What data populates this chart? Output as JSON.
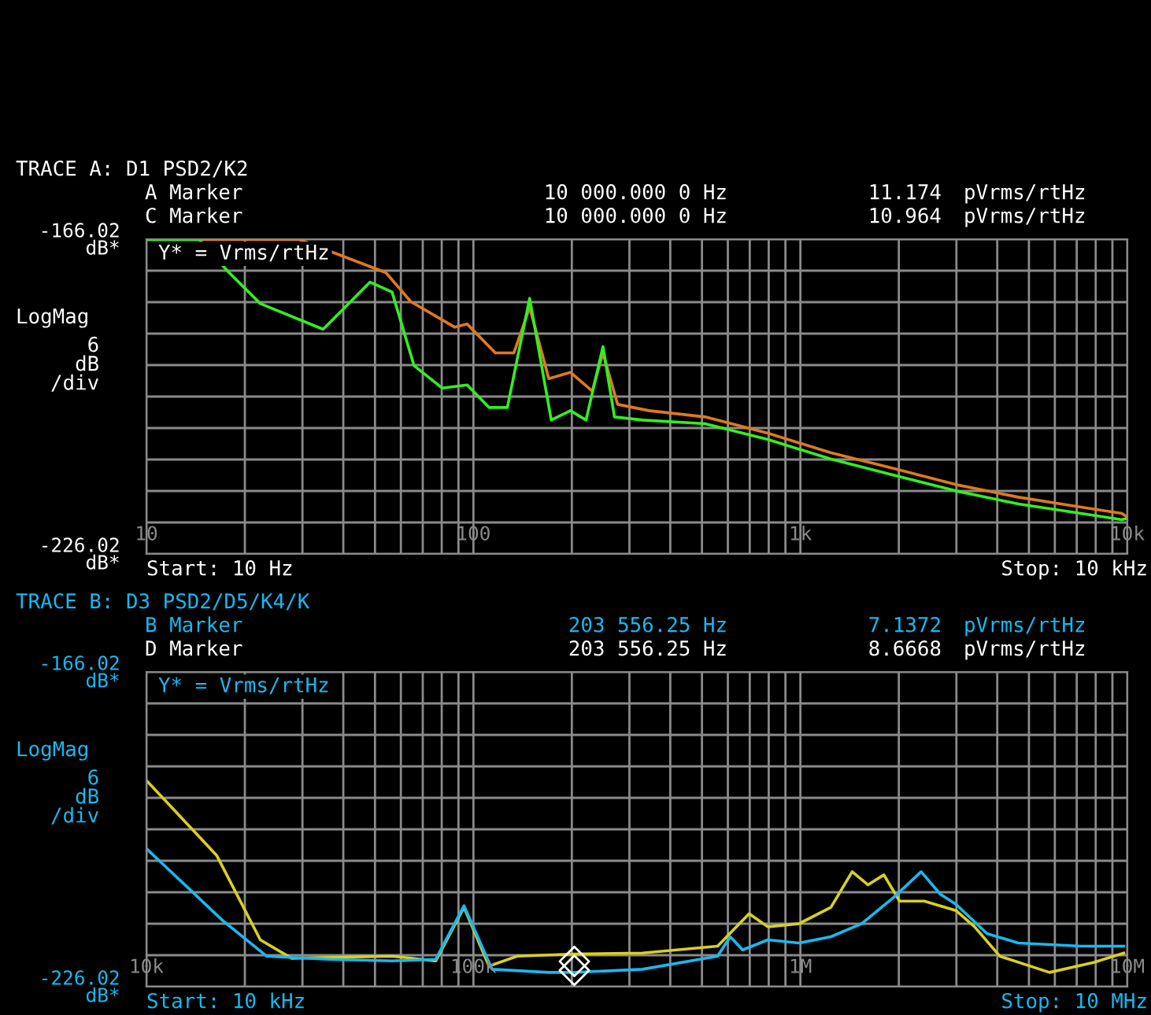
{
  "chart_data": [
    {
      "type": "line",
      "title": "TRACE A: D1 PSD2/K2",
      "ylabel": "6\ndB\n/div",
      "log": "x",
      "grid": true,
      "xlim": [
        10,
        10000
      ],
      "ylim": [
        -226.02,
        -166.02
      ],
      "xticks": [
        10,
        {
          "value": 20,
          "label": null
        },
        {
          "value": 30,
          "label": null
        },
        {
          "value": 40,
          "label": null
        },
        {
          "value": 50,
          "label": null
        },
        {
          "value": 60,
          "label": null
        },
        {
          "value": 70,
          "label": null
        },
        {
          "value": 80,
          "label": null
        },
        {
          "value": 90,
          "label": null
        },
        100,
        {
          "value": 200,
          "label": null
        },
        {
          "value": 300,
          "label": null
        },
        {
          "value": 400,
          "label": null
        },
        {
          "value": 500,
          "label": null
        },
        {
          "value": 600,
          "label": null
        },
        {
          "value": 700,
          "label": null
        },
        {
          "value": 800,
          "label": null
        },
        {
          "value": 900,
          "label": null
        },
        {
          "value": 1000,
          "label": "1k"
        },
        {
          "value": 2000,
          "label": null
        },
        {
          "value": 3000,
          "label": null
        },
        {
          "value": 4000,
          "label": null
        },
        {
          "value": 5000,
          "label": null
        },
        {
          "value": 6000,
          "label": null
        },
        {
          "value": 7000,
          "label": null
        },
        {
          "value": 8000,
          "label": null
        },
        {
          "value": 9000,
          "label": null
        },
        {
          "value": 10000,
          "label": "10k"
        }
      ],
      "yticks": [
        {
          "value": -166.02,
          "label": "-166.02\ndB*"
        },
        {
          "value": -172.02,
          "label": null
        },
        {
          "value": -178.02,
          "label": null
        },
        {
          "value": -184.02,
          "label": null
        },
        {
          "value": -190.02,
          "label": null
        },
        {
          "value": -196.02,
          "label": null
        },
        {
          "value": -202.02,
          "label": null
        },
        {
          "value": -208.02,
          "label": null
        },
        {
          "value": -214.02,
          "label": null
        },
        {
          "value": -220.02,
          "label": null
        },
        {
          "value": -226.02,
          "label": "-226.02\ndB*"
        }
      ],
      "annotations": [
        "A Marker",
        "10 000.000 0 Hz",
        "11.174",
        "pVrms/rtHz",
        "C Marker",
        "10 000.000 0 Hz",
        "10.964",
        "pVrms/rtHz",
        "Y* = Vrms/rtHz",
        "LogMag",
        "Start: 10 Hz",
        "Stop: 10 kHz"
      ],
      "series": [
        {
          "color": "#e07820",
          "x": [
            10,
            29.4,
            54,
            64.3,
            87.7,
            95.7,
            116.7,
            133,
            148.6,
            170,
            198,
            231,
            249,
            276,
            344,
            511,
            795,
            1236,
            1923,
            2987,
            4642,
            7214,
            9616,
            10000
          ],
          "values": [
            -166.1,
            -166.1,
            -172.4,
            -177.9,
            -182.8,
            -182.2,
            -187.7,
            -187.7,
            -179.0,
            -192.6,
            -191.4,
            -195.0,
            -187.7,
            -197.5,
            -198.7,
            -199.9,
            -203.0,
            -206.7,
            -209.7,
            -212.8,
            -215.2,
            -217.1,
            -218.3,
            -219.0
          ]
        },
        {
          "color": "#33ee22",
          "x": [
            10,
            14.5,
            17.9,
            22.3,
            34.7,
            48.3,
            56.4,
            65.8,
            80.2,
            95.7,
            111.6,
            127,
            148.6,
            173,
            198,
            221,
            249,
            270,
            329,
            511,
            795,
            1236,
            1923,
            2987,
            4642,
            7214,
            9616,
            10000
          ],
          "values": [
            -166.1,
            -166.1,
            -172.4,
            -178.3,
            -183.2,
            -174.2,
            -176.1,
            -190.1,
            -194.4,
            -193.8,
            -198.1,
            -198.1,
            -177.3,
            -200.5,
            -198.7,
            -200.5,
            -186.5,
            -199.9,
            -200.5,
            -201.2,
            -204.2,
            -207.9,
            -211.0,
            -214.0,
            -216.5,
            -218.3,
            -219.5,
            -219.2
          ]
        }
      ]
    },
    {
      "type": "line",
      "title": "TRACE B: D3 PSD2/D5/K4/K",
      "ylabel": "6\ndB\n/div",
      "log": "x",
      "grid": true,
      "xlim": [
        10000,
        10000000
      ],
      "ylim": [
        -226.02,
        -166.02
      ],
      "xticks": [
        {
          "value": 10000,
          "label": "10k"
        },
        {
          "value": 20000,
          "label": null
        },
        {
          "value": 30000,
          "label": null
        },
        {
          "value": 40000,
          "label": null
        },
        {
          "value": 50000,
          "label": null
        },
        {
          "value": 60000,
          "label": null
        },
        {
          "value": 70000,
          "label": null
        },
        {
          "value": 80000,
          "label": null
        },
        {
          "value": 90000,
          "label": null
        },
        {
          "value": 100000,
          "label": "100k"
        },
        {
          "value": 200000,
          "label": null
        },
        {
          "value": 300000,
          "label": null
        },
        {
          "value": 400000,
          "label": null
        },
        {
          "value": 500000,
          "label": null
        },
        {
          "value": 600000,
          "label": null
        },
        {
          "value": 700000,
          "label": null
        },
        {
          "value": 800000,
          "label": null
        },
        {
          "value": 900000,
          "label": null
        },
        {
          "value": 1000000,
          "label": "1M"
        },
        {
          "value": 2000000,
          "label": null
        },
        {
          "value": 3000000,
          "label": null
        },
        {
          "value": 4000000,
          "label": null
        },
        {
          "value": 5000000,
          "label": null
        },
        {
          "value": 6000000,
          "label": null
        },
        {
          "value": 7000000,
          "label": null
        },
        {
          "value": 8000000,
          "label": null
        },
        {
          "value": 9000000,
          "label": null
        },
        {
          "value": 10000000,
          "label": "10M"
        }
      ],
      "yticks": [
        {
          "value": -166.02,
          "label": "-166.02\ndB*"
        },
        {
          "value": -172.02,
          "label": null
        },
        {
          "value": -178.02,
          "label": null
        },
        {
          "value": -184.02,
          "label": null
        },
        {
          "value": -190.02,
          "label": null
        },
        {
          "value": -196.02,
          "label": null
        },
        {
          "value": -202.02,
          "label": null
        },
        {
          "value": -208.02,
          "label": null
        },
        {
          "value": -214.02,
          "label": null
        },
        {
          "value": -220.02,
          "label": null
        },
        {
          "value": -226.02,
          "label": "-226.02\ndB*"
        }
      ],
      "annotations": [
        "B Marker",
        "203 556.25 Hz",
        "7.1372",
        "pVrms/rtHz",
        "D Marker",
        "203 556.25 Hz",
        "8.6668",
        "pVrms/rtHz",
        "Y* = Vrms/rtHz",
        "LogMag",
        "Start: 10 kHz",
        "Stop: 10 MHz"
      ],
      "series": [
        {
          "color": "#d8d020",
          "x": [
            10000,
            16400,
            22300,
            27800,
            56300,
            76700,
            93600,
            111600,
            136000,
            203000,
            329000,
            558000,
            697000,
            795000,
            991000,
            1240000,
            1440000,
            1610000,
            1800000,
            2010000,
            2390000,
            2990000,
            3410000,
            4070000,
            5780000,
            7880000,
            9750000
          ],
          "values": [
            -186.7,
            -201.0,
            -217.1,
            -220.6,
            -220.2,
            -221.1,
            -210.9,
            -222.1,
            -220.2,
            -219.8,
            -219.6,
            -218.3,
            -212.1,
            -214.6,
            -214.0,
            -210.9,
            -204.1,
            -206.6,
            -204.7,
            -209.7,
            -209.7,
            -211.5,
            -214.6,
            -220.2,
            -223.3,
            -221.4,
            -219.6
          ]
        },
        {
          "color": "#18b8f0",
          "x": [
            10000,
            17100,
            23300,
            36300,
            56300,
            76700,
            93600,
            114000,
            170000,
            203000,
            329000,
            558000,
            610000,
            666000,
            795000,
            991000,
            1240000,
            1540000,
            1920000,
            2340000,
            2680000,
            2990000,
            3720000,
            4640000,
            7210000,
            9750000
          ],
          "values": [
            -199.7,
            -213.4,
            -220.2,
            -220.8,
            -221.1,
            -220.8,
            -210.6,
            -222.7,
            -223.3,
            -223.3,
            -222.7,
            -220.2,
            -216.5,
            -219.0,
            -217.1,
            -217.7,
            -216.5,
            -214.0,
            -209.1,
            -204.1,
            -208.4,
            -210.3,
            -215.9,
            -217.7,
            -218.3,
            -218.3
          ]
        },
        {
          "type": "scatter",
          "color": "#ffffff",
          "marker": "diamond",
          "x": [
            203556.25,
            203556.25
          ],
          "values": [
            -222.9,
            -221.2
          ]
        }
      ]
    }
  ]
}
